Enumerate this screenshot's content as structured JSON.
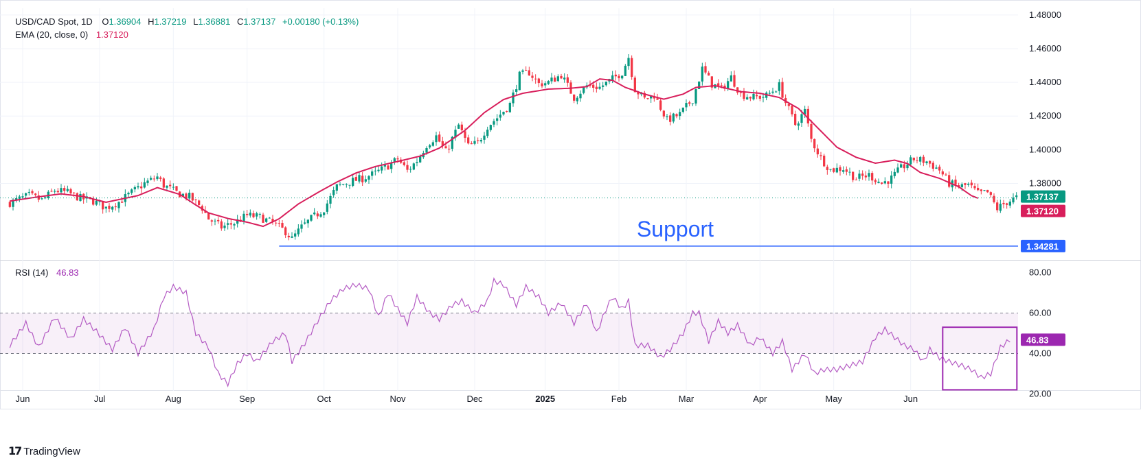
{
  "header": {
    "symbol": "USD/CAD Spot, 1D",
    "open_label": "O",
    "open": "1.36904",
    "high_label": "H",
    "high": "1.37219",
    "low_label": "L",
    "low": "1.36881",
    "close_label": "C",
    "close": "1.37137",
    "change": "+0.00180 (+0.13%)",
    "ema_label": "EMA (20, close, 0)",
    "ema_value": "1.37120",
    "rsi_label": "RSI (14)",
    "rsi_value": "46.83"
  },
  "colors": {
    "up": "#089981",
    "down": "#f23645",
    "ema": "#d81e5b",
    "rsi": "#9c27b0",
    "support": "#2962ff",
    "box": "#9c27b0"
  },
  "chart_data": [
    {
      "type": "candlestick",
      "title": "USD/CAD Spot, 1D",
      "y_ticks": [
        "1.48000",
        "1.46000",
        "1.44000",
        "1.42000",
        "1.40000",
        "1.38000"
      ],
      "ylim": [
        1.335,
        1.484
      ],
      "x_labels": [
        "Jun",
        "Jul",
        "Aug",
        "Sep",
        "Oct",
        "Nov",
        "Dec",
        "2025",
        "Feb",
        "Mar",
        "Apr",
        "May",
        "Jun"
      ],
      "last_price_label": "1.37137",
      "ema_label_value": "1.37120",
      "support_label": "Support",
      "support_level": "1.34281",
      "series": [
        {
          "name": "EMA (20, close, 0)",
          "anchors": [
            [
              0,
              1.3695
            ],
            [
              8,
              1.3718
            ],
            [
              16,
              1.3738
            ],
            [
              23,
              1.3722
            ],
            [
              30,
              1.3688
            ],
            [
              40,
              1.3728
            ],
            [
              46,
              1.3775
            ],
            [
              53,
              1.3735
            ],
            [
              58,
              1.3672
            ],
            [
              62,
              1.3625
            ],
            [
              68,
              1.3592
            ],
            [
              74,
              1.357
            ],
            [
              79,
              1.3545
            ],
            [
              84,
              1.359
            ],
            [
              90,
              1.3678
            ],
            [
              96,
              1.3745
            ],
            [
              102,
              1.3808
            ],
            [
              108,
              1.3862
            ],
            [
              114,
              1.39
            ],
            [
              122,
              1.3935
            ],
            [
              128,
              1.3962
            ],
            [
              134,
              1.401
            ],
            [
              142,
              1.4115
            ],
            [
              148,
              1.422
            ],
            [
              154,
              1.4298
            ],
            [
              160,
              1.4335
            ],
            [
              168,
              1.436
            ],
            [
              175,
              1.4365
            ],
            [
              180,
              1.4375
            ],
            [
              184,
              1.442
            ],
            [
              188,
              1.4412
            ],
            [
              192,
              1.437
            ],
            [
              198,
              1.433
            ],
            [
              204,
              1.43
            ],
            [
              210,
              1.433
            ],
            [
              214,
              1.437
            ],
            [
              220,
              1.438
            ],
            [
              228,
              1.4345
            ],
            [
              234,
              1.4335
            ],
            [
              240,
              1.431
            ],
            [
              246,
              1.4245
            ],
            [
              252,
              1.413
            ],
            [
              258,
              1.4015
            ],
            [
              264,
              1.3955
            ],
            [
              270,
              1.392
            ],
            [
              276,
              1.3938
            ],
            [
              280,
              1.3918
            ],
            [
              284,
              1.3865
            ],
            [
              290,
              1.383
            ],
            [
              296,
              1.378
            ],
            [
              300,
              1.3727
            ],
            [
              302,
              1.3712
            ]
          ]
        }
      ],
      "close_path": [
        [
          0,
          1.3685
        ],
        [
          6,
          1.3728
        ],
        [
          10,
          1.37
        ],
        [
          14,
          1.376
        ],
        [
          18,
          1.3745
        ],
        [
          22,
          1.3712
        ],
        [
          26,
          1.3695
        ],
        [
          30,
          1.3655
        ],
        [
          34,
          1.369
        ],
        [
          38,
          1.3745
        ],
        [
          42,
          1.38
        ],
        [
          46,
          1.3838
        ],
        [
          48,
          1.379
        ],
        [
          52,
          1.3745
        ],
        [
          56,
          1.372
        ],
        [
          60,
          1.3655
        ],
        [
          62,
          1.359
        ],
        [
          66,
          1.354
        ],
        [
          70,
          1.3565
        ],
        [
          74,
          1.361
        ],
        [
          78,
          1.36
        ],
        [
          82,
          1.3565
        ],
        [
          86,
          1.3515
        ],
        [
          88,
          1.347
        ],
        [
          91,
          1.354
        ],
        [
          94,
          1.359
        ],
        [
          98,
          1.365
        ],
        [
          102,
          1.378
        ],
        [
          106,
          1.381
        ],
        [
          110,
          1.383
        ],
        [
          114,
          1.386
        ],
        [
          118,
          1.3905
        ],
        [
          121,
          1.3945
        ],
        [
          124,
          1.3875
        ],
        [
          127,
          1.3935
        ],
        [
          130,
          1.403
        ],
        [
          133,
          1.408
        ],
        [
          136,
          1.3985
        ],
        [
          140,
          1.4145
        ],
        [
          143,
          1.402
        ],
        [
          146,
          1.404
        ],
        [
          149,
          1.414
        ],
        [
          152,
          1.419
        ],
        [
          156,
          1.427
        ],
        [
          159,
          1.444
        ],
        [
          162,
          1.446
        ],
        [
          165,
          1.439
        ],
        [
          168,
          1.44
        ],
        [
          172,
          1.4445
        ],
        [
          176,
          1.431
        ],
        [
          180,
          1.438
        ],
        [
          184,
          1.437
        ],
        [
          188,
          1.442
        ],
        [
          191,
          1.446
        ],
        [
          193,
          1.455
        ],
        [
          195,
          1.436
        ],
        [
          198,
          1.43
        ],
        [
          201,
          1.4325
        ],
        [
          205,
          1.4175
        ],
        [
          209,
          1.421
        ],
        [
          213,
          1.43
        ],
        [
          216,
          1.448
        ],
        [
          219,
          1.439
        ],
        [
          222,
          1.436
        ],
        [
          225,
          1.443
        ],
        [
          228,
          1.433
        ],
        [
          232,
          1.431
        ],
        [
          236,
          1.432
        ],
        [
          240,
          1.438
        ],
        [
          242,
          1.428
        ],
        [
          245,
          1.415
        ],
        [
          248,
          1.423
        ],
        [
          250,
          1.406
        ],
        [
          253,
          1.395
        ],
        [
          256,
          1.388
        ],
        [
          260,
          1.389
        ],
        [
          264,
          1.383
        ],
        [
          268,
          1.385
        ],
        [
          272,
          1.38
        ],
        [
          275,
          1.383
        ],
        [
          278,
          1.389
        ],
        [
          282,
          1.3945
        ],
        [
          286,
          1.393
        ],
        [
          290,
          1.388
        ],
        [
          293,
          1.38
        ],
        [
          296,
          1.378
        ],
        [
          299,
          1.379
        ],
        [
          302,
          1.374
        ],
        [
          305,
          1.3745
        ],
        [
          308,
          1.365
        ],
        [
          311,
          1.369
        ],
        [
          314,
          1.3714
        ]
      ]
    },
    {
      "type": "line",
      "title": "RSI (14)",
      "y_ticks": [
        "80.00",
        "60.00",
        "40.00",
        "20.00"
      ],
      "ylim": [
        14,
        86
      ],
      "band": [
        40,
        60
      ],
      "last_value_label": "46.83",
      "series": [
        {
          "name": "RSI (14)",
          "points": [
            [
              0,
              44
            ],
            [
              5,
              55
            ],
            [
              9,
              43
            ],
            [
              14,
              58
            ],
            [
              19,
              47
            ],
            [
              23,
              57
            ],
            [
              27,
              51
            ],
            [
              32,
              42
            ],
            [
              36,
              53
            ],
            [
              40,
              40
            ],
            [
              45,
              52
            ],
            [
              48,
              68
            ],
            [
              51,
              73
            ],
            [
              55,
              70
            ],
            [
              58,
              50
            ],
            [
              62,
              43
            ],
            [
              65,
              30
            ],
            [
              68,
              25
            ],
            [
              71,
              35
            ],
            [
              74,
              40
            ],
            [
              77,
              36
            ],
            [
              82,
              46
            ],
            [
              86,
              50
            ],
            [
              88,
              36
            ],
            [
              92,
              45
            ],
            [
              96,
              56
            ],
            [
              100,
              66
            ],
            [
              104,
              72
            ],
            [
              108,
              74
            ],
            [
              112,
              72
            ],
            [
              115,
              58
            ],
            [
              118,
              70
            ],
            [
              121,
              62
            ],
            [
              124,
              55
            ],
            [
              127,
              68
            ],
            [
              131,
              60
            ],
            [
              134,
              57
            ],
            [
              138,
              64
            ],
            [
              141,
              66
            ],
            [
              145,
              60
            ],
            [
              149,
              66
            ],
            [
              151,
              76
            ],
            [
              154,
              74
            ],
            [
              158,
              64
            ],
            [
              161,
              73
            ],
            [
              165,
              68
            ],
            [
              168,
              60
            ],
            [
              172,
              65
            ],
            [
              176,
              55
            ],
            [
              180,
              65
            ],
            [
              183,
              50
            ],
            [
              186,
              62
            ],
            [
              188,
              68
            ],
            [
              191,
              62
            ],
            [
              193,
              66
            ],
            [
              195,
              44
            ],
            [
              199,
              44
            ],
            [
              203,
              38
            ],
            [
              206,
              42
            ],
            [
              210,
              50
            ],
            [
              213,
              60
            ],
            [
              215,
              60
            ],
            [
              218,
              46
            ],
            [
              221,
              56
            ],
            [
              224,
              50
            ],
            [
              227,
              54
            ],
            [
              231,
              44
            ],
            [
              234,
              48
            ],
            [
              238,
              40
            ],
            [
              241,
              46
            ],
            [
              244,
              32
            ],
            [
              248,
              40
            ],
            [
              251,
              30
            ],
            [
              254,
              32
            ],
            [
              258,
              32
            ],
            [
              262,
              34
            ],
            [
              266,
              36
            ],
            [
              270,
              48
            ],
            [
              273,
              52
            ],
            [
              276,
              48
            ],
            [
              279,
              44
            ],
            [
              282,
              42
            ],
            [
              285,
              36
            ],
            [
              287,
              42
            ],
            [
              290,
              38
            ],
            [
              293,
              36
            ],
            [
              297,
              34
            ],
            [
              300,
              32
            ],
            [
              303,
              28
            ],
            [
              306,
              30
            ],
            [
              309,
              43
            ],
            [
              312,
              46.83
            ]
          ]
        }
      ],
      "highlight_box": {
        "x_from": 291,
        "x_to": 312,
        "y_from": 22,
        "y_to": 53
      }
    }
  ],
  "footer": {
    "brand": "TradingView",
    "logo": "tradingview-logo-icon"
  }
}
